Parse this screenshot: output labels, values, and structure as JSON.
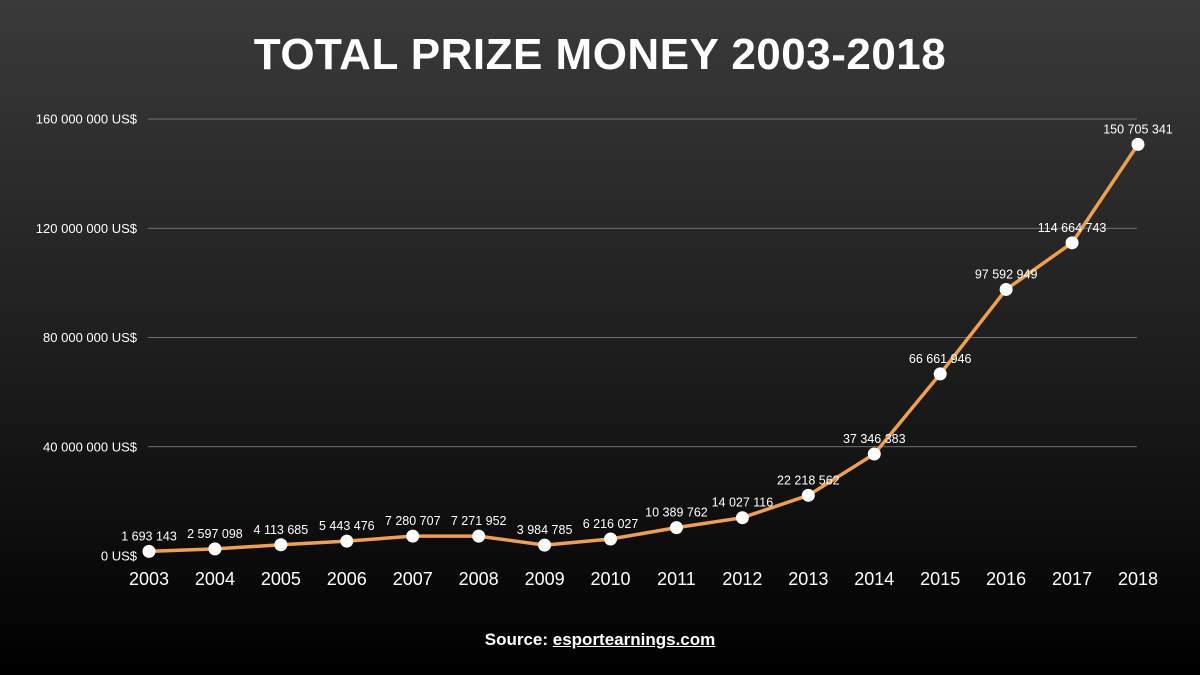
{
  "chart_data": {
    "type": "line",
    "title": "TOTAL PRIZE MONEY 2003-2018",
    "xlabel": "",
    "ylabel": "",
    "categories": [
      "2003",
      "2004",
      "2005",
      "2006",
      "2007",
      "2008",
      "2009",
      "2010",
      "2011",
      "2012",
      "2013",
      "2014",
      "2015",
      "2016",
      "2017",
      "2018"
    ],
    "values": [
      1693143,
      2597098,
      4113685,
      5443476,
      7280707,
      7271952,
      3984785,
      6216027,
      10389762,
      14027116,
      22218562,
      37346383,
      66661946,
      97592949,
      114664743,
      150705341
    ],
    "data_labels": [
      "1 693 143",
      "2 597 098",
      "4 113 685",
      "5 443 476",
      "7 280 707",
      "7 271 952",
      "3 984 785",
      "6 216 027",
      "10 389 762",
      "14 027 116",
      "22 218 562",
      "37 346 383",
      "66 661 946",
      "97 592 949",
      "114 664 743",
      "150 705 341"
    ],
    "y_ticks": [
      0,
      40000000,
      80000000,
      120000000,
      160000000
    ],
    "y_tick_labels": [
      "0 US$",
      "40 000 000 US$",
      "80 000 000 US$",
      "120 000 000 US$",
      "160 000 000 US$"
    ],
    "ylim": [
      0,
      160000000
    ],
    "grid": true,
    "legend": "none",
    "colors": {
      "line": "#f0a04b",
      "marker": "#ffffff",
      "grid": "#8a8a8a",
      "text": "#ffffff"
    }
  },
  "footer": {
    "source_prefix": "Source: ",
    "source_link": "esportearnings.com"
  }
}
